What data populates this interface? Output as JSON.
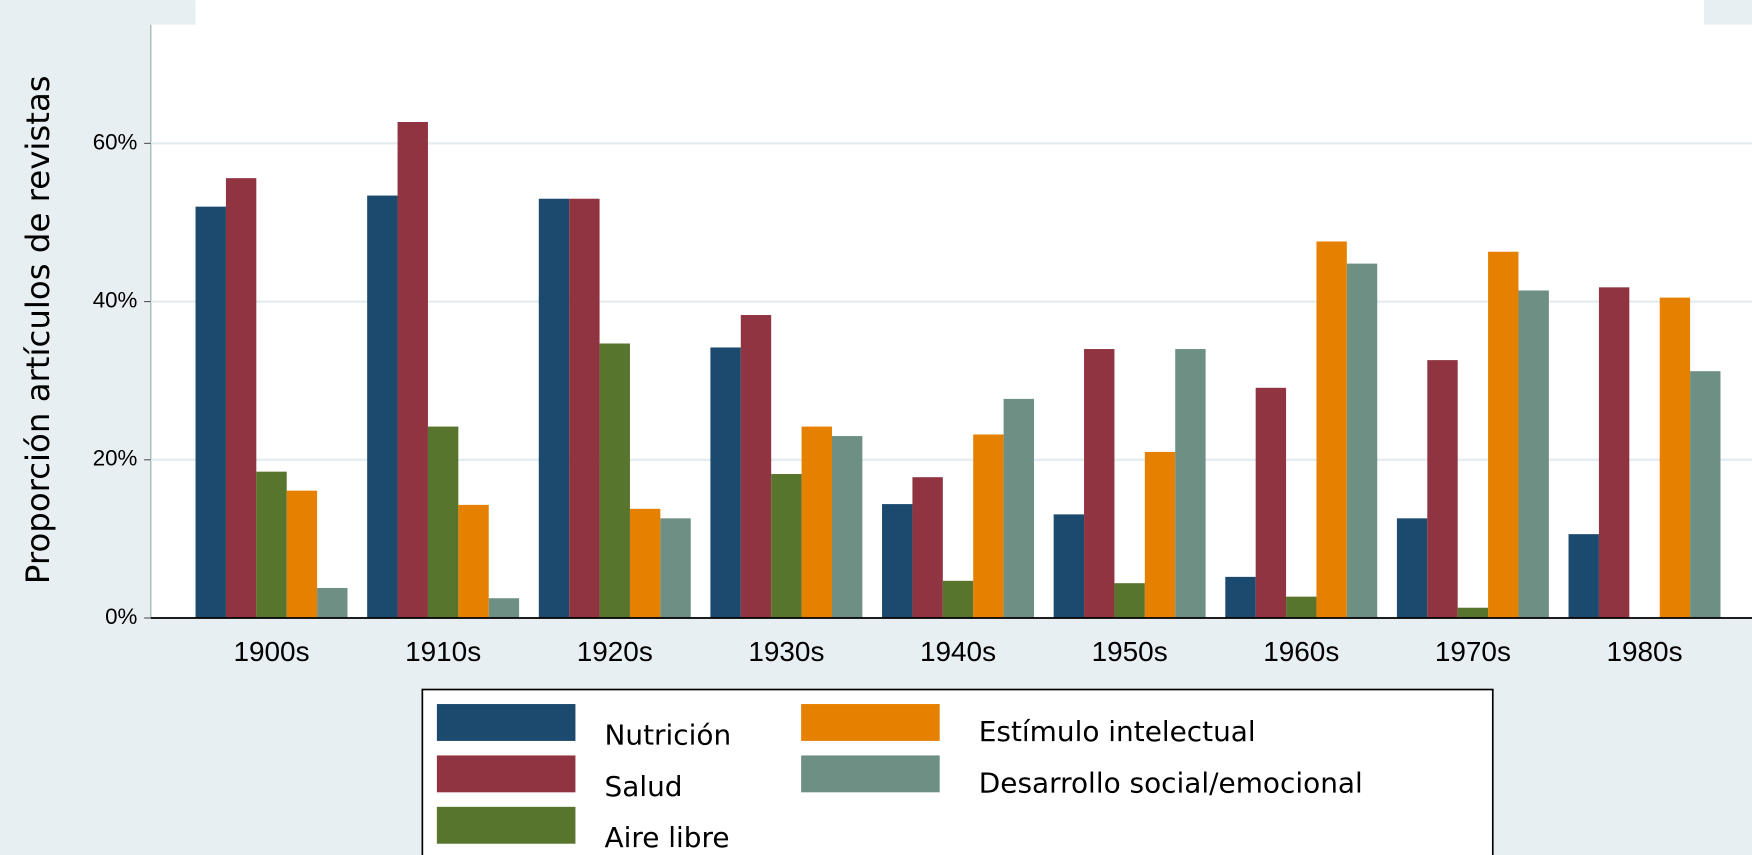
{
  "chart_data": {
    "type": "bar",
    "y_label": "Proporción artículos de revistas",
    "categories": [
      "1900s",
      "1910s",
      "1920s",
      "1930s",
      "1940s",
      "1950s",
      "1960s",
      "1970s",
      "1980s"
    ],
    "series": [
      {
        "name": "Nutrición",
        "color": "#1c4a6e",
        "values": [
          52.0,
          53.4,
          53.0,
          34.2,
          14.4,
          13.1,
          5.2,
          12.6,
          10.6
        ]
      },
      {
        "name": "Salud",
        "color": "#8f3440",
        "values": [
          55.6,
          62.7,
          53.0,
          38.3,
          17.8,
          34.0,
          29.1,
          32.6,
          41.8
        ]
      },
      {
        "name": "Aire libre",
        "color": "#58752e",
        "values": [
          18.5,
          24.2,
          34.7,
          18.2,
          4.7,
          4.4,
          2.7,
          1.3,
          null
        ]
      },
      {
        "name": "Estímulo intelectual",
        "color": "#e68000",
        "values": [
          16.1,
          14.3,
          13.8,
          24.2,
          23.2,
          21.0,
          47.6,
          46.3,
          40.5
        ]
      },
      {
        "name": "Desarrollo social/emocional",
        "color": "#6e8f83",
        "values": [
          3.8,
          2.5,
          12.6,
          23.0,
          27.7,
          34.0,
          44.8,
          41.4,
          31.2
        ]
      }
    ],
    "ylim": [
      0,
      75
    ],
    "yticks": [
      {
        "value": 0,
        "label": "0%"
      },
      {
        "value": 20,
        "label": "20%"
      },
      {
        "value": 40,
        "label": "40%"
      },
      {
        "value": 60,
        "label": "60%"
      }
    ],
    "grid": true
  }
}
